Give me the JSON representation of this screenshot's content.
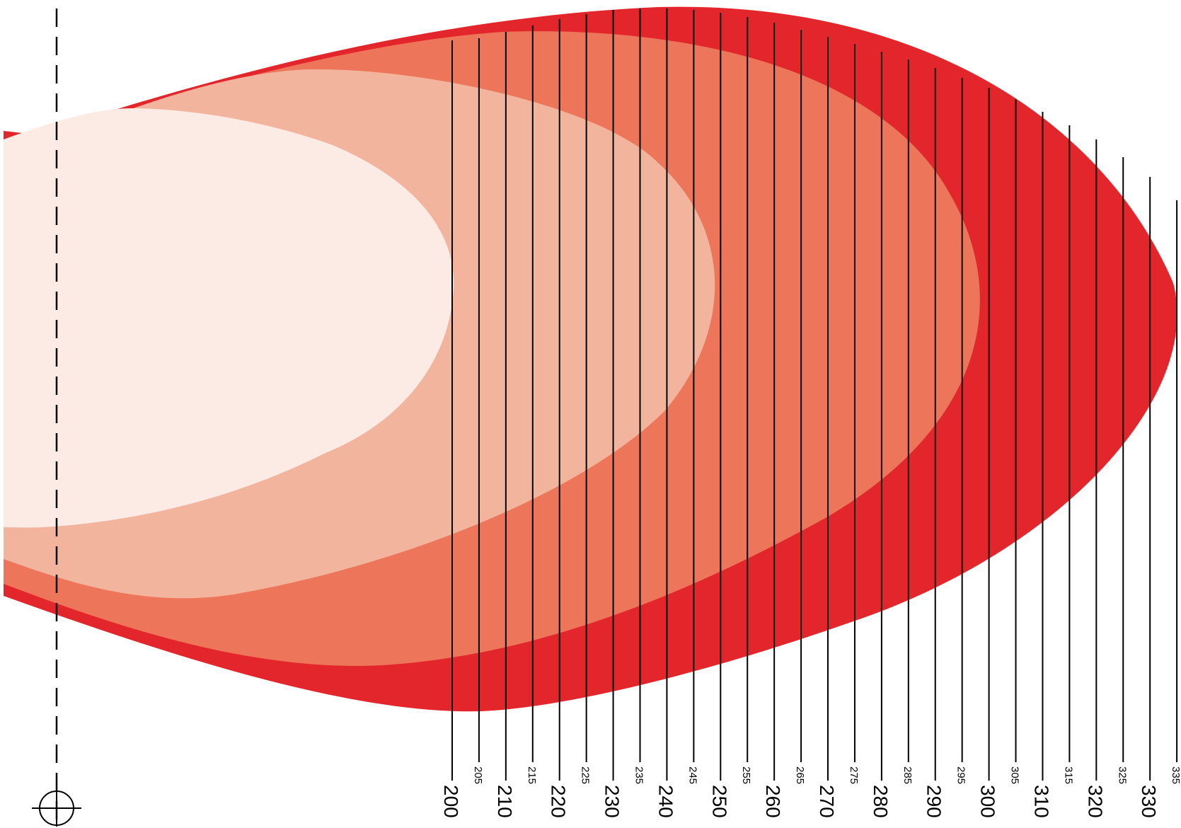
{
  "diagram": {
    "colors": {
      "zone_1": "#E3262B",
      "zone_2": "#EC755A",
      "zone_3": "#F3B49E",
      "zone_4": "#FCEAE4",
      "line": "#000000"
    },
    "zones": [
      {
        "id": "zone-1",
        "color_key": "zone_1"
      },
      {
        "id": "zone-2",
        "color_key": "zone_2"
      },
      {
        "id": "zone-3",
        "color_key": "zone_3"
      },
      {
        "id": "zone-4",
        "color_key": "zone_4"
      }
    ],
    "major_ticks": [
      "200",
      "210",
      "220",
      "230",
      "240",
      "250",
      "260",
      "270",
      "280",
      "290",
      "300",
      "310",
      "320",
      "330"
    ],
    "minor_ticks": [
      "205",
      "215",
      "225",
      "235",
      "245",
      "255",
      "265",
      "275",
      "285",
      "295",
      "305",
      "315",
      "325",
      "335"
    ]
  }
}
